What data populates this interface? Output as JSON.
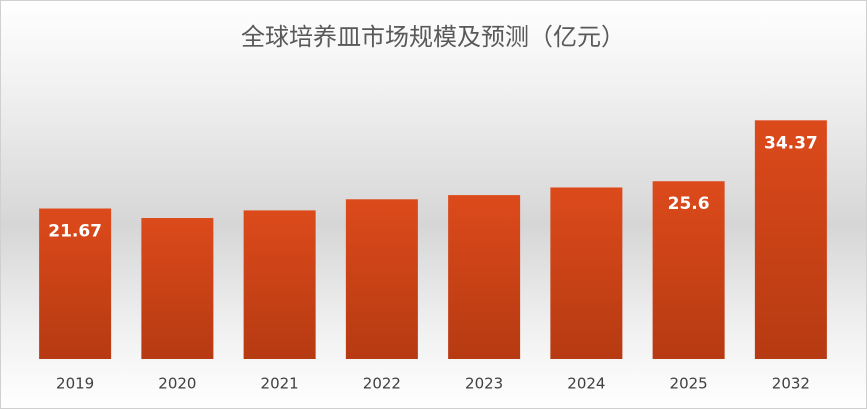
{
  "chart_data": {
    "type": "bar",
    "title": "全球培养皿市场规模及预测（亿元）",
    "categories": [
      "2019",
      "2020",
      "2021",
      "2022",
      "2023",
      "2024",
      "2025",
      "2032"
    ],
    "values": [
      21.67,
      20.3,
      21.4,
      23.0,
      23.6,
      24.7,
      25.6,
      34.37
    ],
    "value_labels": [
      "21.67",
      null,
      null,
      null,
      null,
      null,
      "25.6",
      "34.37"
    ],
    "color": "#d4461a",
    "ylim": [
      0,
      36
    ]
  }
}
